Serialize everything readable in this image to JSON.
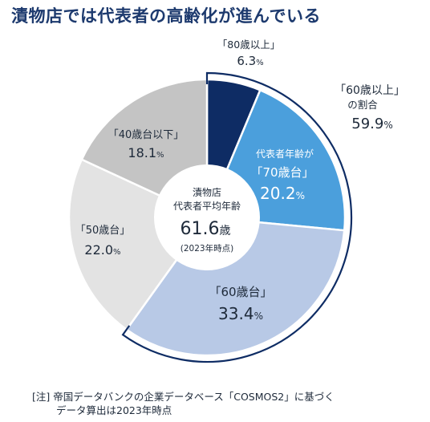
{
  "title": "漬物店では代表者の高齢化が進んでいる",
  "chart_data": {
    "type": "pie",
    "slices": [
      {
        "label": "「80歳以上」",
        "value": 6.3,
        "value_text": "6.3",
        "unit": "%",
        "color": "#0e2c64"
      },
      {
        "label": "「70歳台」",
        "prefix": "代表者年齢が",
        "value": 20.2,
        "value_text": "20.2",
        "unit": "%",
        "color": "#4b9fdc"
      },
      {
        "label": "「60歳台」",
        "value": 33.4,
        "value_text": "33.4",
        "unit": "%",
        "color": "#b8c9e6"
      },
      {
        "label": "「50歳台」",
        "value": 22.0,
        "value_text": "22.0",
        "unit": "%",
        "color": "#e3e3e3"
      },
      {
        "label": "「40歳台以下」",
        "value": 18.1,
        "value_text": "18.1",
        "unit": "%",
        "color": "#c4c4c4"
      }
    ],
    "center": {
      "line1": "漬物店",
      "line2": "代表者平均年齢",
      "value": "61.6",
      "unit": "歳",
      "year": "(2023年時点)"
    },
    "callout": {
      "line1": "「60歳以上」",
      "line2": "の割合",
      "value": "59.9",
      "unit": "%"
    }
  },
  "note": {
    "line1": "[注] 帝国データバンクの企業データベース「COSMOS2」に基づく",
    "line2": "データ算出は2023年時点"
  },
  "colors": {
    "title": "#1d3a6e",
    "arc": "#0e2c64",
    "text": "#1e2a3a"
  }
}
